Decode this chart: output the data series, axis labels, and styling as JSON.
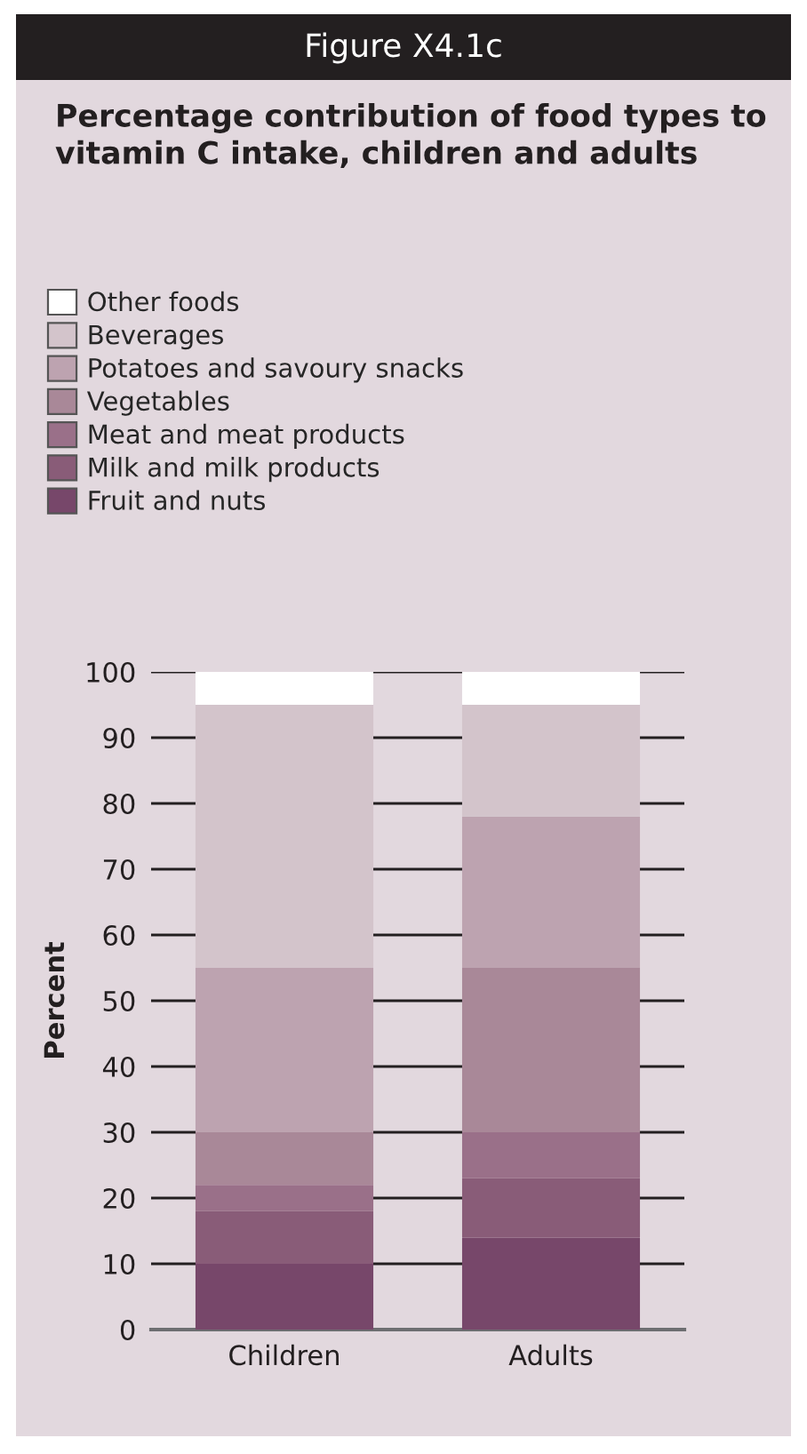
{
  "chart_data": {
    "type": "bar",
    "stacked": true,
    "title": "Figure X4.1c",
    "subtitle": "Percentage contribution of food types to vitamin C intake, children and adults",
    "ylabel": "Percent",
    "categories": [
      "Children",
      "Adults"
    ],
    "series": [
      {
        "name": "Fruit and nuts",
        "color": "#77476a",
        "values": [
          10,
          14
        ]
      },
      {
        "name": "Milk and milk products",
        "color": "#895c78",
        "values": [
          8,
          9
        ]
      },
      {
        "name": "Meat and meat products",
        "color": "#9a7089",
        "values": [
          4,
          7
        ]
      },
      {
        "name": "Vegetables",
        "color": "#a98898",
        "values": [
          8,
          25
        ]
      },
      {
        "name": "Potatoes and savoury snacks",
        "color": "#bda3b0",
        "values": [
          25,
          23
        ]
      },
      {
        "name": "Beverages",
        "color": "#d3c4cb",
        "values": [
          40,
          17
        ]
      },
      {
        "name": "Other foods",
        "color": "#ffffff",
        "values": [
          5,
          5
        ]
      }
    ],
    "ylim": [
      0,
      100
    ],
    "yticks": [
      0,
      10,
      20,
      30,
      40,
      50,
      60,
      70,
      80,
      90,
      100
    ],
    "grid": "y",
    "legend": "top"
  }
}
